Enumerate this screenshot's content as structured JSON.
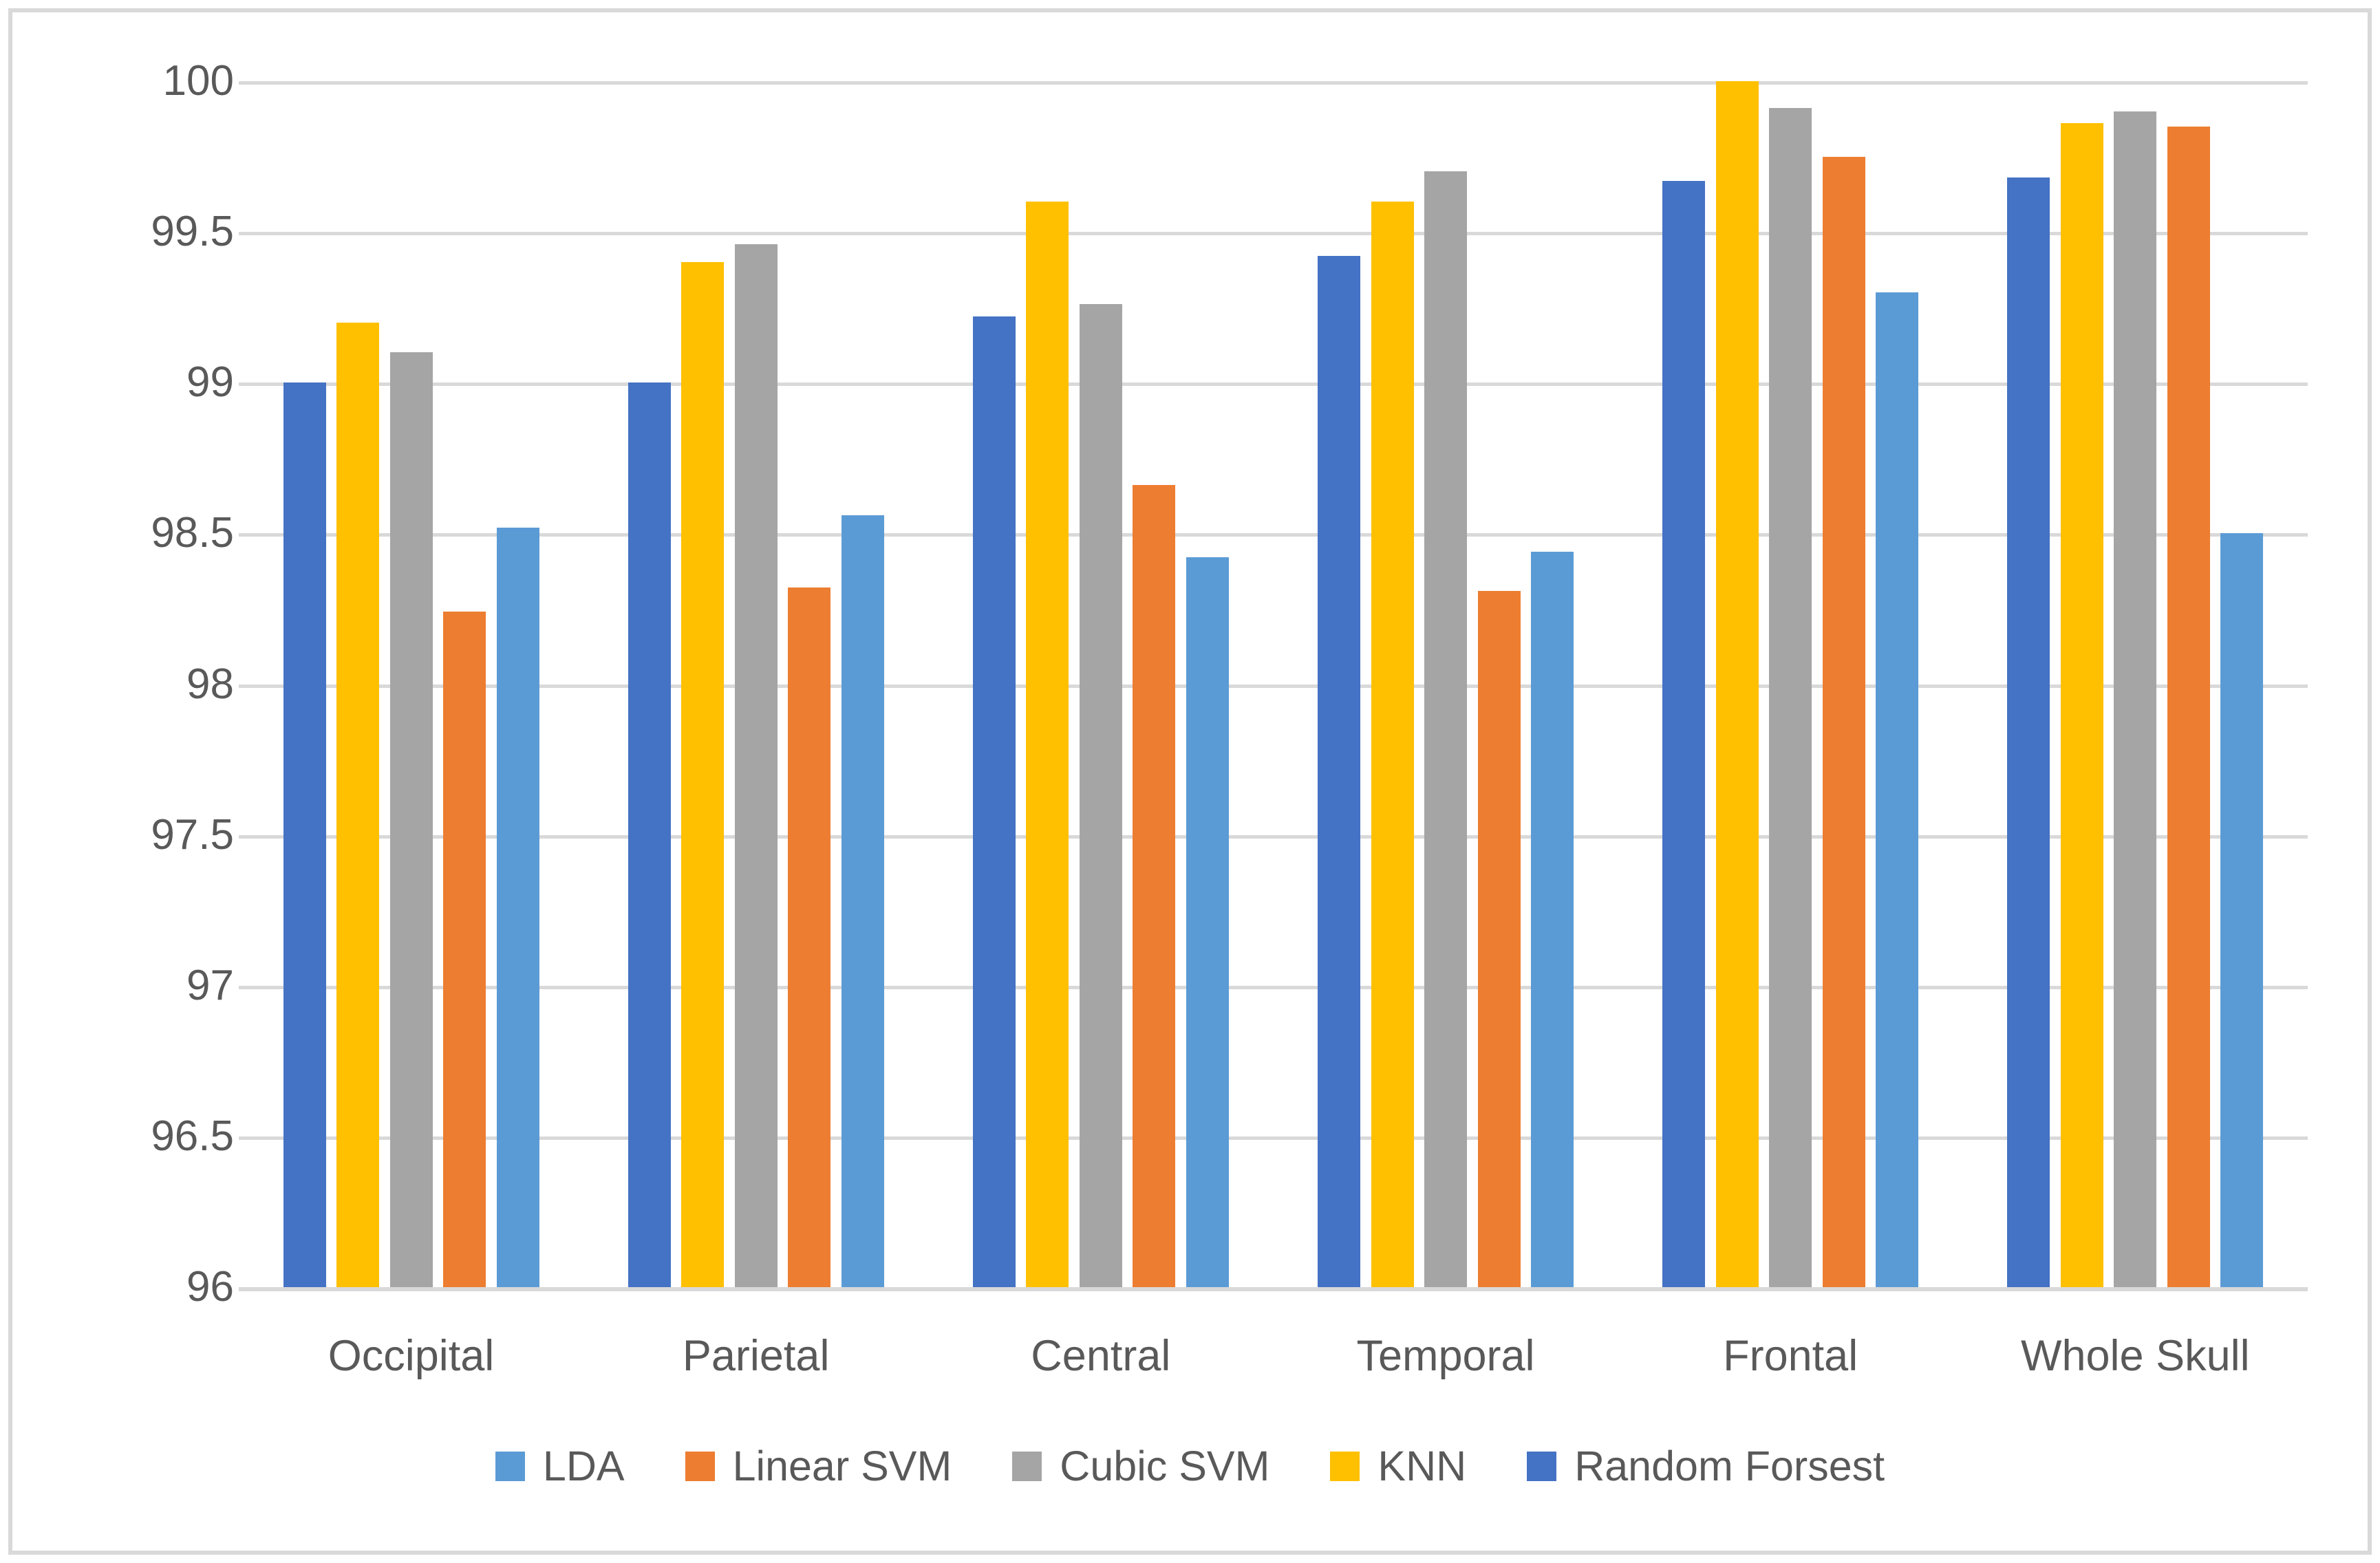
{
  "figure": {
    "background_color": "#ffffff",
    "border_color": "#d9d9d9",
    "text_color": "#595959",
    "gridline_color": "#d9d9d9"
  },
  "axis": {
    "y_tick_labels": [
      "100",
      "99.5",
      "99",
      "98.5",
      "98",
      "97.5",
      "97",
      "96.5",
      "96"
    ],
    "y_tick_values": [
      100,
      99.5,
      99,
      98.5,
      98,
      97.5,
      97,
      96.5,
      96
    ]
  },
  "chart_data": {
    "type": "bar",
    "title": "",
    "xlabel": "",
    "ylabel": "",
    "ylim": [
      96,
      100
    ],
    "y_step": 0.5,
    "grid": true,
    "legend_position": "bottom",
    "categories": [
      "Occipital",
      "Parietal",
      "Central",
      "Temporal",
      "Frontal",
      "Whole Skull"
    ],
    "series": [
      {
        "name": "LDA",
        "color": "#5b9bd5",
        "values": [
          98.52,
          98.56,
          98.42,
          98.44,
          99.3,
          98.5
        ]
      },
      {
        "name": "Linear SVM",
        "color": "#ed7d31",
        "values": [
          98.24,
          98.32,
          98.66,
          98.31,
          99.75,
          99.85
        ]
      },
      {
        "name": "Cubic SVM",
        "color": "#a5a5a5",
        "values": [
          99.1,
          99.46,
          99.26,
          99.7,
          99.91,
          99.9
        ]
      },
      {
        "name": "KNN",
        "color": "#ffc000",
        "values": [
          99.2,
          99.4,
          99.6,
          99.6,
          100.0,
          99.86
        ]
      },
      {
        "name": "Random Forsest",
        "color": "#4472c4",
        "values": [
          99.0,
          99.0,
          99.22,
          99.42,
          99.67,
          99.68
        ]
      }
    ],
    "bar_draw_order": [
      "Random Forsest",
      "KNN",
      "Cubic SVM",
      "Linear SVM",
      "LDA"
    ]
  },
  "legend": {
    "items": [
      {
        "label": "LDA",
        "color": "#5b9bd5"
      },
      {
        "label": "Linear SVM",
        "color": "#ed7d31"
      },
      {
        "label": "Cubic SVM",
        "color": "#a5a5a5"
      },
      {
        "label": "KNN",
        "color": "#ffc000"
      },
      {
        "label": "Random Forsest",
        "color": "#4472c4"
      }
    ]
  }
}
